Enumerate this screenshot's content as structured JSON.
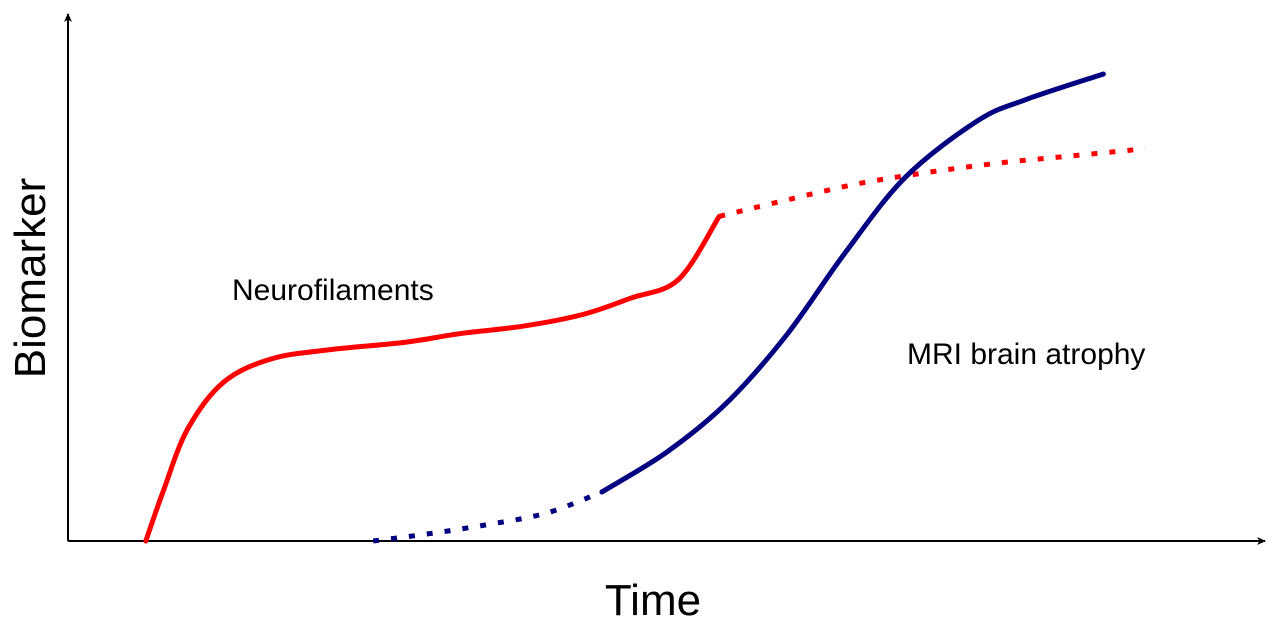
{
  "chart_data": {
    "type": "line",
    "xlabel": "Time",
    "ylabel": "Biomarker",
    "xlim": [
      0,
      100
    ],
    "ylim": [
      0,
      100
    ],
    "grid": false,
    "legend": "none",
    "series": [
      {
        "name": "Neurofilaments",
        "color": "#ff0000",
        "solid": [
          [
            6.5,
            0
          ],
          [
            8,
            11
          ],
          [
            10,
            24
          ],
          [
            13,
            34
          ],
          [
            17,
            39
          ],
          [
            22,
            41
          ],
          [
            28,
            42.5
          ],
          [
            33,
            44.5
          ],
          [
            38,
            46
          ],
          [
            43,
            48.5
          ],
          [
            47,
            52
          ],
          [
            51,
            56
          ],
          [
            54.4,
            69.5
          ]
        ],
        "projected": [
          [
            54.4,
            69.5
          ],
          [
            60,
            73
          ],
          [
            66,
            76.5
          ],
          [
            72,
            79
          ],
          [
            78,
            81
          ],
          [
            84,
            82.5
          ],
          [
            90,
            84
          ]
        ]
      },
      {
        "name": "MRI brain atrophy",
        "color": "#000080",
        "projected": [
          [
            25.5,
            0
          ],
          [
            30,
            1.5
          ],
          [
            35,
            3.5
          ],
          [
            40,
            6
          ],
          [
            44.6,
            10.5
          ]
        ],
        "solid": [
          [
            44.6,
            10.5
          ],
          [
            50,
            19
          ],
          [
            55,
            29.5
          ],
          [
            60,
            44
          ],
          [
            65,
            62
          ],
          [
            70,
            78
          ],
          [
            76,
            90
          ],
          [
            80,
            94.5
          ],
          [
            86.5,
            100
          ]
        ]
      }
    ]
  }
}
